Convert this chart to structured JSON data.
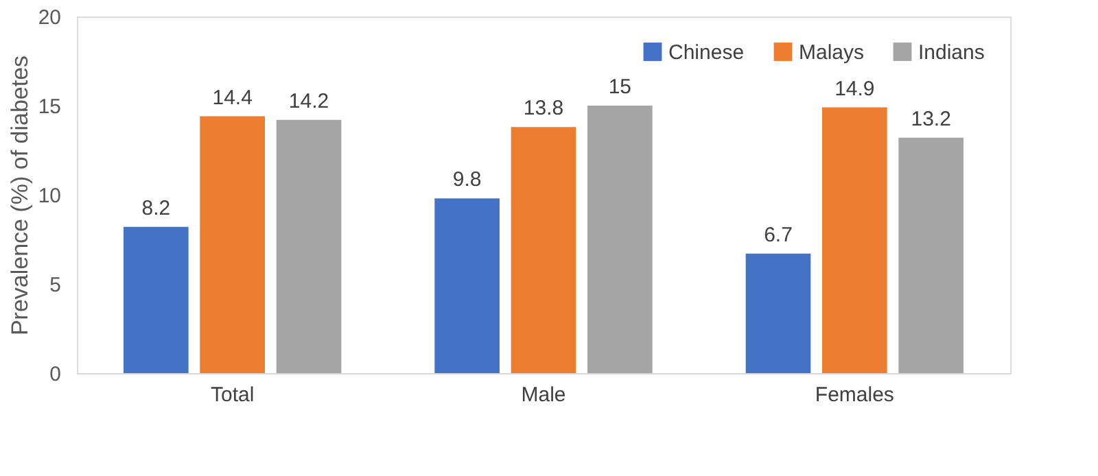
{
  "chart_data": {
    "type": "bar",
    "ylabel": "Prevalence (%) of diabetes",
    "categories": [
      "Total",
      "Male",
      "Females"
    ],
    "series": [
      {
        "name": "Chinese",
        "color": "#4472c4",
        "values": [
          8.2,
          9.8,
          6.7
        ]
      },
      {
        "name": "Malays",
        "color": "#ed7d31",
        "values": [
          14.4,
          13.8,
          14.9
        ]
      },
      {
        "name": "Indians",
        "color": "#a5a5a5",
        "values": [
          14.2,
          15,
          13.2
        ]
      }
    ],
    "ylim": [
      0,
      20
    ],
    "yticks": [
      0,
      5,
      10,
      15,
      20
    ],
    "grid": false,
    "legend": "top right",
    "data_labels": true
  }
}
